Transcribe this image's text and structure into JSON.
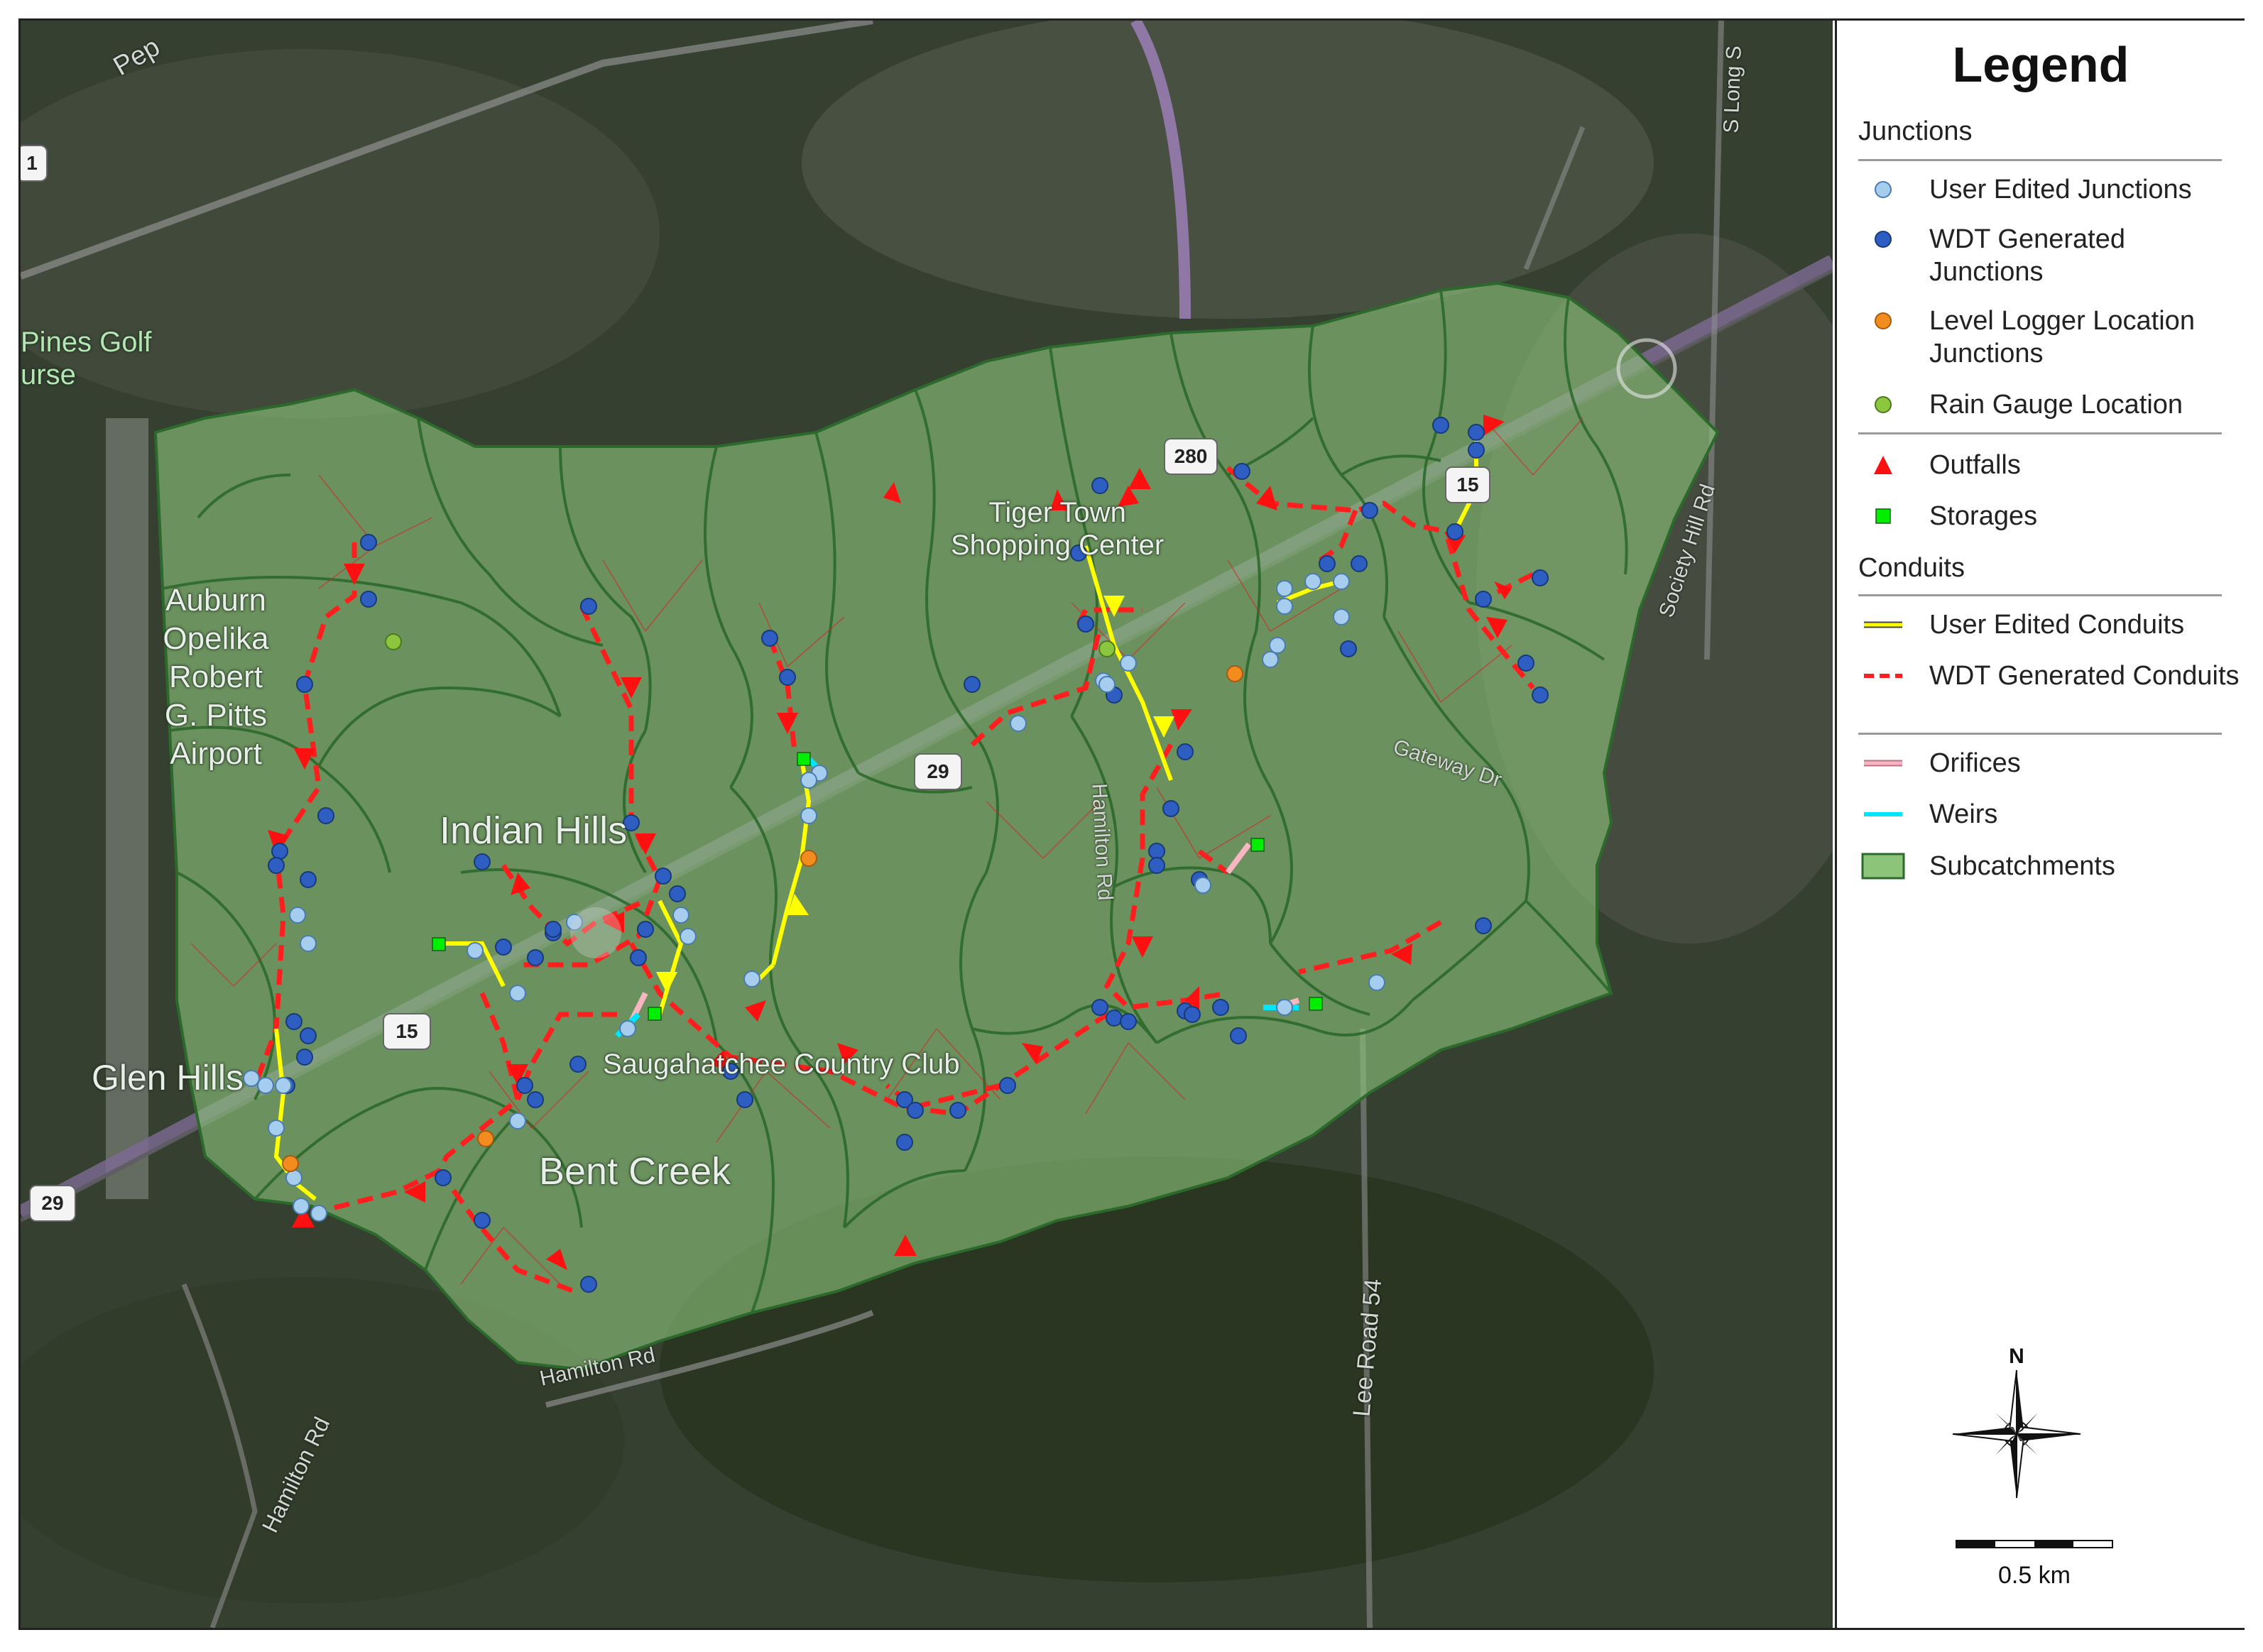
{
  "legend": {
    "title": "Legend",
    "junctions_heading": "Junctions",
    "conduits_heading": "Conduits",
    "items": {
      "user_edited_junctions": "User Edited Junctions",
      "wdt_generated_junctions": "WDT Generated Junctions",
      "level_logger_junctions": "Level Logger Location Junctions",
      "rain_gauge_location": "Rain Gauge Location",
      "outfalls": "Outfalls",
      "storages": "Storages",
      "user_edited_conduits": "User Edited Conduits",
      "wdt_generated_conduits": "WDT Generated Conduits",
      "orifices": "Orifices",
      "weirs": "Weirs",
      "subcatchments": "Subcatchments"
    },
    "colors": {
      "user_edited_junction": "#a6cdee",
      "wdt_junction": "#2f5ec2",
      "level_logger": "#f28c1e",
      "rain_gauge": "#8cc63f",
      "outfall": "#ff1010",
      "storage": "#00ee00",
      "user_conduit": "#ffff00",
      "wdt_conduit": "#ff1e1e",
      "orifice": "#f7b6c2",
      "weir": "#00e5ff",
      "subcatchment_fill": "#8cc47a",
      "subcatchment_edge": "#2c6a2c"
    }
  },
  "map": {
    "place_labels": {
      "airport": "Auburn\nOpelika\nRobert\nG. Pitts\nAirport",
      "golf": "Pines Golf\nurse",
      "indian_hills": "Indian Hills",
      "bent_creek": "Bent Creek",
      "saugahatchee": "Saugahatchee Country Club",
      "tiger_town": "Tiger Town\nShopping Center",
      "glen_hills": "Glen Hills"
    },
    "road_labels": {
      "hamilton_rd_1": "Hamilton Rd",
      "hamilton_rd_2": "Hamilton Rd",
      "hamilton_rd_3": "Hamilton Rd",
      "lee_road_54": "Lee Road 54",
      "society_hill_rd": "Society Hill Rd",
      "gateway_dr": "Gateway Dr",
      "s_long_s": "S Long S",
      "pepperell": "Pep"
    },
    "shields": {
      "us29": "29",
      "r280": "280",
      "r15": "15",
      "r29b": "29",
      "r15b": "15",
      "r1": "1"
    }
  },
  "north_arrow": {
    "letter": "N"
  },
  "scale_bar": {
    "label": "0.5 km"
  }
}
